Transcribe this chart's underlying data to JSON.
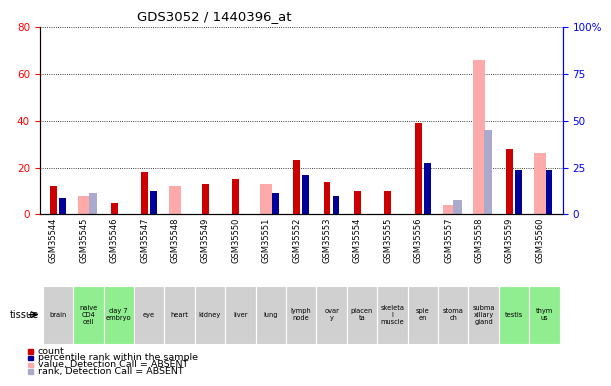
{
  "title": "GDS3052 / 1440396_at",
  "samples": [
    "GSM35544",
    "GSM35545",
    "GSM35546",
    "GSM35547",
    "GSM35548",
    "GSM35549",
    "GSM35550",
    "GSM35551",
    "GSM35552",
    "GSM35553",
    "GSM35554",
    "GSM35555",
    "GSM35556",
    "GSM35557",
    "GSM35558",
    "GSM35559",
    "GSM35560"
  ],
  "tissues": [
    "brain",
    "naive\nCD4\ncell",
    "day 7\nembryo",
    "eye",
    "heart",
    "kidney",
    "liver",
    "lung",
    "lymph\nnode",
    "ovar\ny",
    "placen\nta",
    "skeleta\nl\nmuscle",
    "sple\nen",
    "stoma\nch",
    "subma\nxillary\ngland",
    "testis",
    "thym\nus"
  ],
  "tissue_colors": [
    "#d0d0d0",
    "#90ee90",
    "#90ee90",
    "#d0d0d0",
    "#d0d0d0",
    "#d0d0d0",
    "#d0d0d0",
    "#d0d0d0",
    "#d0d0d0",
    "#d0d0d0",
    "#d0d0d0",
    "#d0d0d0",
    "#d0d0d0",
    "#d0d0d0",
    "#d0d0d0",
    "#90ee90",
    "#90ee90"
  ],
  "count_red": [
    12,
    0,
    5,
    18,
    0,
    13,
    15,
    0,
    23,
    14,
    10,
    10,
    39,
    0,
    0,
    28,
    0
  ],
  "rank_blue": [
    7,
    0,
    0,
    10,
    0,
    0,
    0,
    9,
    17,
    8,
    0,
    0,
    22,
    0,
    0,
    19,
    19
  ],
  "absent_pink": [
    0,
    8,
    0,
    0,
    12,
    0,
    0,
    13,
    0,
    0,
    0,
    0,
    0,
    4,
    66,
    0,
    26
  ],
  "absent_rank_light": [
    0,
    9,
    0,
    0,
    0,
    0,
    0,
    0,
    0,
    0,
    0,
    0,
    0,
    6,
    36,
    0,
    0
  ],
  "ylim_left": [
    0,
    80
  ],
  "ylim_right": [
    0,
    100
  ],
  "yticks_left": [
    0,
    20,
    40,
    60,
    80
  ],
  "yticks_right": [
    0,
    25,
    50,
    75,
    100
  ],
  "count_color": "#cc0000",
  "rank_color": "#000099",
  "absent_val_color": "#ffaaaa",
  "absent_rank_color": "#aaaacc",
  "grid_color": "black",
  "left_axis_color": "red",
  "right_axis_color": "blue"
}
